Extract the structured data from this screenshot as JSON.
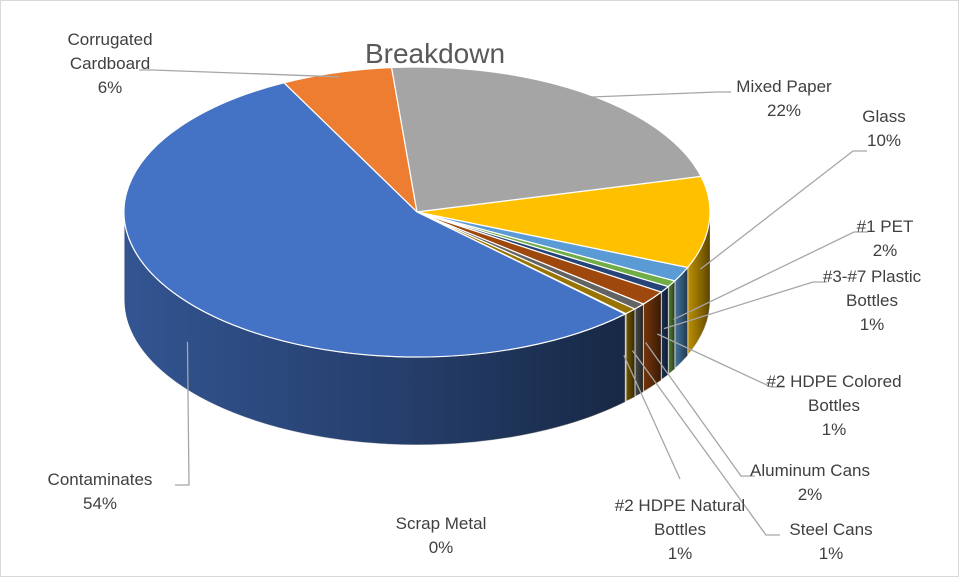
{
  "chart_data": {
    "type": "pie",
    "style": "3d-exploded-none",
    "title": "Breakdown",
    "legend": "none",
    "slices": [
      {
        "label": "Corrugated Cardboard",
        "label_lines": [
          "Corrugated",
          "Cardboard"
        ],
        "pct_text": "6%",
        "value": 6,
        "color": "#ed7d31"
      },
      {
        "label": "Mixed Paper",
        "label_lines": [
          "Mixed Paper"
        ],
        "pct_text": "22%",
        "value": 22,
        "color": "#a5a5a5"
      },
      {
        "label": "Glass",
        "label_lines": [
          "Glass"
        ],
        "pct_text": "10%",
        "value": 10,
        "color": "#ffc000"
      },
      {
        "label": "#1 PET",
        "label_lines": [
          "#1 PET"
        ],
        "pct_text": "2%",
        "value": 1.6,
        "color": "#5b9bd5"
      },
      {
        "label": "#3-#7 Plastic Bottles",
        "label_lines": [
          "#3-#7 Plastic",
          "Bottles"
        ],
        "pct_text": "1%",
        "value": 0.7,
        "color": "#70ad47"
      },
      {
        "label": "#2 HDPE Colored Bottles",
        "label_lines": [
          "#2 HDPE Colored",
          "Bottles"
        ],
        "pct_text": "1%",
        "value": 0.7,
        "color": "#264478"
      },
      {
        "label": "Aluminum Cans",
        "label_lines": [
          "Aluminum Cans"
        ],
        "pct_text": "2%",
        "value": 1.6,
        "color": "#9e480e"
      },
      {
        "label": "Steel Cans",
        "label_lines": [
          "Steel Cans"
        ],
        "pct_text": "1%",
        "value": 0.7,
        "color": "#636363"
      },
      {
        "label": "#2 HDPE Natural Bottles",
        "label_lines": [
          "#2 HDPE Natural",
          "Bottles"
        ],
        "pct_text": "1%",
        "value": 0.7,
        "color": "#997300"
      },
      {
        "label": "Scrap Metal",
        "label_lines": [
          "Scrap Metal"
        ],
        "pct_text": "0%",
        "value": 0.05,
        "color": "#43682b"
      },
      {
        "label": "Contaminates",
        "label_lines": [
          "Contaminates"
        ],
        "pct_text": "54%",
        "value": 54,
        "color": "#4472c4"
      }
    ]
  }
}
